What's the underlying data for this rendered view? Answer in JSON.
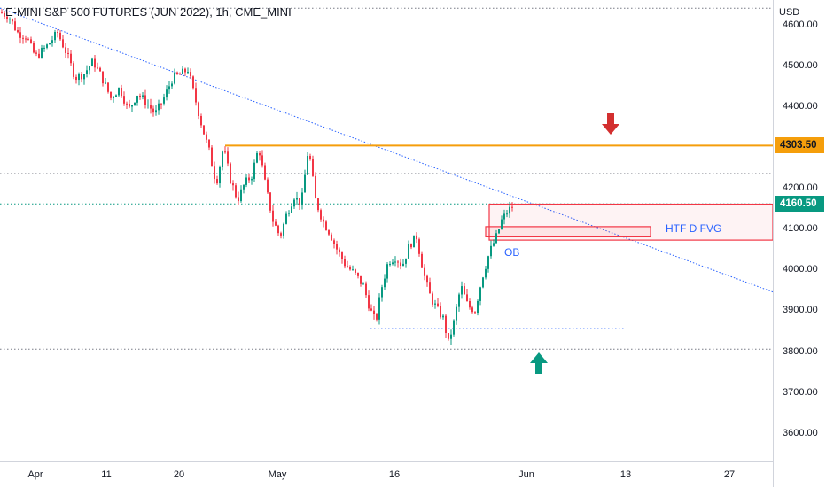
{
  "header": {
    "symbol_title": "E-MINI S&P 500 FUTURES (JUN 2022), 1h, CME_MINI"
  },
  "price_axis": {
    "currency": "USD",
    "ticks": [
      "4600.00",
      "4500.00",
      "4400.00",
      "4300.00",
      "4200.00",
      "4100.00",
      "4000.00",
      "3900.00",
      "3800.00",
      "3700.00",
      "3600.00"
    ],
    "tick_values": [
      4600,
      4500,
      4400,
      4300,
      4200,
      4100,
      4000,
      3900,
      3800,
      3700,
      3600
    ],
    "badges": [
      {
        "label": "4303.50",
        "value": 4303.5,
        "bg": "#f59e0b",
        "fg": "#131722"
      },
      {
        "label": "4160.50",
        "value": 4160.5,
        "bg": "#089981",
        "fg": "#ffffff"
      }
    ]
  },
  "time_axis": {
    "labels": [
      "Apr",
      "11",
      "20",
      "May",
      "16",
      "Jun",
      "13",
      "27"
    ]
  },
  "annotations": {
    "fvg_label": "HTF D FVG",
    "ob_label": "OB"
  },
  "colors": {
    "up": "#089981",
    "down": "#f23645",
    "resistance": "#f59e0b",
    "trendline": "#2962ff",
    "fvg_box": "#f23645",
    "arrow_down": "#d32f2f",
    "arrow_up": "#089981"
  },
  "chart_data": {
    "type": "candlestick",
    "price_range": [
      3530,
      4660
    ],
    "levels": [
      {
        "kind": "resistance",
        "value": 4303.5
      },
      {
        "kind": "dotted",
        "value": 4640
      },
      {
        "kind": "dotted",
        "value": 4235
      },
      {
        "kind": "dotted",
        "value": 4160.5
      },
      {
        "kind": "dotted",
        "value": 3805
      },
      {
        "kind": "dotted-short",
        "value": 3855
      }
    ],
    "trendline": {
      "from_price": 4640,
      "to_price": 3945
    },
    "fvg_zone": [
      4072,
      4160
    ],
    "ob_zone": [
      4080,
      4105
    ],
    "path": [
      {
        "t": 0,
        "p": 4630
      },
      {
        "t": 10,
        "p": 4620
      },
      {
        "t": 20,
        "p": 4580
      },
      {
        "t": 30,
        "p": 4570
      },
      {
        "t": 40,
        "p": 4520
      },
      {
        "t": 52,
        "p": 4545
      },
      {
        "t": 65,
        "p": 4580
      },
      {
        "t": 75,
        "p": 4530
      },
      {
        "t": 85,
        "p": 4470
      },
      {
        "t": 95,
        "p": 4480
      },
      {
        "t": 105,
        "p": 4510
      },
      {
        "t": 115,
        "p": 4470
      },
      {
        "t": 125,
        "p": 4420
      },
      {
        "t": 135,
        "p": 4445
      },
      {
        "t": 145,
        "p": 4390
      },
      {
        "t": 155,
        "p": 4430
      },
      {
        "t": 165,
        "p": 4410
      },
      {
        "t": 175,
        "p": 4380
      },
      {
        "t": 185,
        "p": 4420
      },
      {
        "t": 195,
        "p": 4470
      },
      {
        "t": 205,
        "p": 4480
      },
      {
        "t": 212,
        "p": 4490
      },
      {
        "t": 220,
        "p": 4420
      },
      {
        "t": 228,
        "p": 4350
      },
      {
        "t": 236,
        "p": 4290
      },
      {
        "t": 244,
        "p": 4210
      },
      {
        "t": 252,
        "p": 4300
      },
      {
        "t": 260,
        "p": 4220
      },
      {
        "t": 268,
        "p": 4170
      },
      {
        "t": 276,
        "p": 4210
      },
      {
        "t": 284,
        "p": 4230
      },
      {
        "t": 292,
        "p": 4300
      },
      {
        "t": 300,
        "p": 4200
      },
      {
        "t": 308,
        "p": 4120
      },
      {
        "t": 316,
        "p": 4080
      },
      {
        "t": 324,
        "p": 4140
      },
      {
        "t": 332,
        "p": 4180
      },
      {
        "t": 340,
        "p": 4160
      },
      {
        "t": 348,
        "p": 4300
      },
      {
        "t": 356,
        "p": 4170
      },
      {
        "t": 364,
        "p": 4120
      },
      {
        "t": 372,
        "p": 4090
      },
      {
        "t": 380,
        "p": 4050
      },
      {
        "t": 390,
        "p": 4010
      },
      {
        "t": 400,
        "p": 3990
      },
      {
        "t": 410,
        "p": 3960
      },
      {
        "t": 418,
        "p": 3900
      },
      {
        "t": 424,
        "p": 3870
      },
      {
        "t": 430,
        "p": 3950
      },
      {
        "t": 438,
        "p": 4020
      },
      {
        "t": 446,
        "p": 4030
      },
      {
        "t": 454,
        "p": 4010
      },
      {
        "t": 462,
        "p": 4060
      },
      {
        "t": 470,
        "p": 4080
      },
      {
        "t": 478,
        "p": 3990
      },
      {
        "t": 486,
        "p": 3930
      },
      {
        "t": 494,
        "p": 3900
      },
      {
        "t": 500,
        "p": 3880
      },
      {
        "t": 506,
        "p": 3820
      },
      {
        "t": 512,
        "p": 3870
      },
      {
        "t": 520,
        "p": 3960
      },
      {
        "t": 528,
        "p": 3910
      },
      {
        "t": 536,
        "p": 3900
      },
      {
        "t": 544,
        "p": 3980
      },
      {
        "t": 552,
        "p": 4040
      },
      {
        "t": 560,
        "p": 4080
      },
      {
        "t": 566,
        "p": 4120
      },
      {
        "t": 572,
        "p": 4140
      },
      {
        "t": 580,
        "p": 4160
      }
    ]
  }
}
